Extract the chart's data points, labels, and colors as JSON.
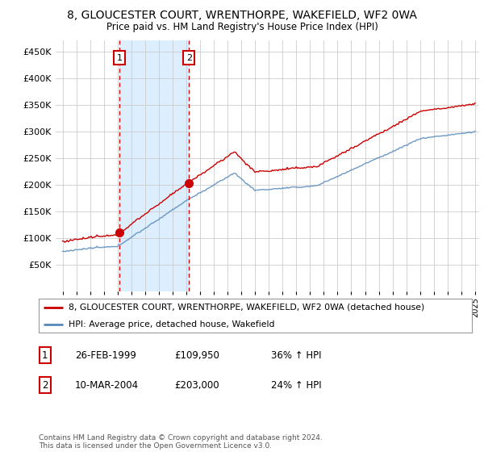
{
  "title": "8, GLOUCESTER COURT, WRENTHORPE, WAKEFIELD, WF2 0WA",
  "subtitle": "Price paid vs. HM Land Registry's House Price Index (HPI)",
  "legend_label_red": "8, GLOUCESTER COURT, WRENTHORPE, WAKEFIELD, WF2 0WA (detached house)",
  "legend_label_blue": "HPI: Average price, detached house, Wakefield",
  "footer": "Contains HM Land Registry data © Crown copyright and database right 2024.\nThis data is licensed under the Open Government Licence v3.0.",
  "sale1_date": "26-FEB-1999",
  "sale1_price": "£109,950",
  "sale1_hpi": "36% ↑ HPI",
  "sale1_year": 1999.15,
  "sale1_value": 109950,
  "sale2_date": "10-MAR-2004",
  "sale2_price": "£203,000",
  "sale2_hpi": "24% ↑ HPI",
  "sale2_year": 2004.2,
  "sale2_value": 203000,
  "ylim": [
    0,
    470000
  ],
  "yticks": [
    0,
    50000,
    100000,
    150000,
    200000,
    250000,
    300000,
    350000,
    400000,
    450000
  ],
  "red_color": "#cc0000",
  "blue_color": "#5588bb",
  "shade_color": "#ddeeff",
  "bg_color": "#ffffff",
  "grid_color": "#cccccc",
  "xstart": 1995,
  "xend": 2025
}
